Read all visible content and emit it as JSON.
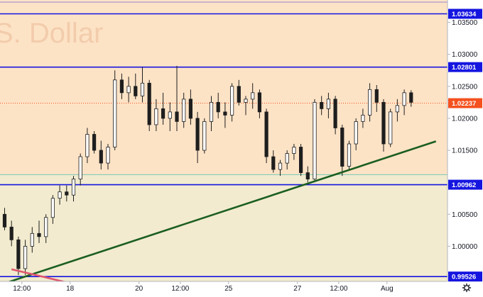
{
  "watermark": "S. Dollar",
  "chart_data": {
    "type": "candlestick",
    "y_axis": {
      "range": [
        0.9945,
        1.0385
      ],
      "ticks": [
        "1.03500",
        "1.03000",
        "1.02500",
        "1.02000",
        "1.01500",
        "1.00500",
        "1.00000"
      ]
    },
    "x_axis": {
      "ticks": [
        "12:00",
        "18",
        "20",
        "12:00",
        "25",
        "27",
        "12:00",
        "Aug"
      ],
      "tick_positions": [
        2.5,
        9.5,
        19.5,
        25.5,
        32.5,
        42.5,
        48.5,
        55.5
      ]
    },
    "horizontal_levels": [
      {
        "label": "1.03634",
        "value": 1.03634,
        "color": "#1515e0"
      },
      {
        "label": "1.02801",
        "value": 1.02801,
        "color": "#1515e0"
      },
      {
        "label": "1.00962",
        "value": 1.00962,
        "color": "#1515e0"
      },
      {
        "label": "0.99526",
        "value": 0.99526,
        "color": "#1515e0"
      }
    ],
    "current_price": {
      "label": "1.02237",
      "value": 1.02237,
      "color": "#f4511e"
    },
    "zones": [
      {
        "from": 1.0112,
        "to": 1.0385,
        "color": "#fde3c6"
      },
      {
        "from": 0.9945,
        "to": 1.0112,
        "color": "#f2ebcf"
      }
    ],
    "trendlines": [
      {
        "name": "support",
        "points": [
          [
            0,
            0.9942
          ],
          [
            62.6,
            1.0164
          ]
        ],
        "color": "#1b5e20"
      },
      {
        "name": "resistance-red",
        "points": [
          [
            1,
            0.9964
          ],
          [
            12.3,
            0.9935
          ]
        ],
        "color": "#e0566f"
      }
    ],
    "candles": [
      [
        1.005,
        1.006,
        1.0025,
        1.003
      ],
      [
        1.003,
        1.004,
        1.0,
        1.001
      ],
      [
        1.001,
        1.0015,
        0.9955,
        0.9965
      ],
      [
        0.9965,
        1.001,
        0.9955,
        1.0
      ],
      [
        1.0,
        1.003,
        0.999,
        1.002
      ],
      [
        1.002,
        1.004,
        1.0005,
        1.0015
      ],
      [
        1.0015,
        1.005,
        1.0005,
        1.0045
      ],
      [
        1.0045,
        1.008,
        1.0035,
        1.0075
      ],
      [
        1.0075,
        1.0095,
        1.0065,
        1.0085
      ],
      [
        1.0085,
        1.0095,
        1.007,
        1.008
      ],
      [
        1.008,
        1.011,
        1.007,
        1.0105
      ],
      [
        1.0105,
        1.0145,
        1.0095,
        1.014
      ],
      [
        1.014,
        1.0185,
        1.013,
        1.0175
      ],
      [
        1.0175,
        1.018,
        1.0145,
        1.015
      ],
      [
        1.015,
        1.0165,
        1.012,
        1.013
      ],
      [
        1.013,
        1.016,
        1.012,
        1.0155
      ],
      [
        1.0155,
        1.0275,
        1.015,
        1.026
      ],
      [
        1.026,
        1.027,
        1.023,
        1.024
      ],
      [
        1.024,
        1.0265,
        1.0225,
        1.025
      ],
      [
        1.025,
        1.027,
        1.023,
        1.0235
      ],
      [
        1.0235,
        1.028,
        1.0225,
        1.0255
      ],
      [
        1.0255,
        1.026,
        1.018,
        1.019
      ],
      [
        1.019,
        1.023,
        1.018,
        1.0215
      ],
      [
        1.0215,
        1.024,
        1.019,
        1.02
      ],
      [
        1.02,
        1.0225,
        1.018,
        1.021
      ],
      [
        1.021,
        1.0282,
        1.018,
        1.0195
      ],
      [
        1.0195,
        1.024,
        1.0185,
        1.023
      ],
      [
        1.023,
        1.0245,
        1.019,
        1.02
      ],
      [
        1.02,
        1.021,
        1.013,
        1.015
      ],
      [
        1.015,
        1.02,
        1.0145,
        1.0195
      ],
      [
        1.0195,
        1.0235,
        1.018,
        1.0225
      ],
      [
        1.0225,
        1.024,
        1.02,
        1.021
      ],
      [
        1.021,
        1.0225,
        1.0185,
        1.0205
      ],
      [
        1.0205,
        1.0255,
        1.0195,
        1.025
      ],
      [
        1.025,
        1.026,
        1.022,
        1.0225
      ],
      [
        1.0225,
        1.0235,
        1.0205,
        1.023
      ],
      [
        1.023,
        1.0255,
        1.0215,
        1.024
      ],
      [
        1.024,
        1.0245,
        1.02,
        1.021
      ],
      [
        1.021,
        1.0215,
        1.013,
        1.014
      ],
      [
        1.014,
        1.015,
        1.0115,
        1.012
      ],
      [
        1.012,
        1.0135,
        1.011,
        1.013
      ],
      [
        1.013,
        1.015,
        1.012,
        1.0145
      ],
      [
        1.0145,
        1.016,
        1.0135,
        1.0155
      ],
      [
        1.0155,
        1.016,
        1.011,
        1.0115
      ],
      [
        1.0115,
        1.0125,
        1.01,
        1.0105
      ],
      [
        1.0105,
        1.023,
        1.01,
        1.0225
      ],
      [
        1.0225,
        1.0235,
        1.0205,
        1.0215
      ],
      [
        1.0215,
        1.024,
        1.02,
        1.023
      ],
      [
        1.023,
        1.0235,
        1.0175,
        1.0185
      ],
      [
        1.0185,
        1.019,
        1.011,
        1.0125
      ],
      [
        1.0125,
        1.0165,
        1.012,
        1.016
      ],
      [
        1.016,
        1.02,
        1.015,
        1.0195
      ],
      [
        1.0195,
        1.0215,
        1.0185,
        1.0205
      ],
      [
        1.0205,
        1.0255,
        1.0195,
        1.0245
      ],
      [
        1.0245,
        1.0252,
        1.021,
        1.0225
      ],
      [
        1.0225,
        1.023,
        1.0148,
        1.016
      ],
      [
        1.016,
        1.0215,
        1.0155,
        1.021
      ],
      [
        1.021,
        1.023,
        1.0195,
        1.022
      ],
      [
        1.022,
        1.0245,
        1.0205,
        1.024
      ],
      [
        1.024,
        1.0244,
        1.0218,
        1.0225
      ]
    ]
  }
}
